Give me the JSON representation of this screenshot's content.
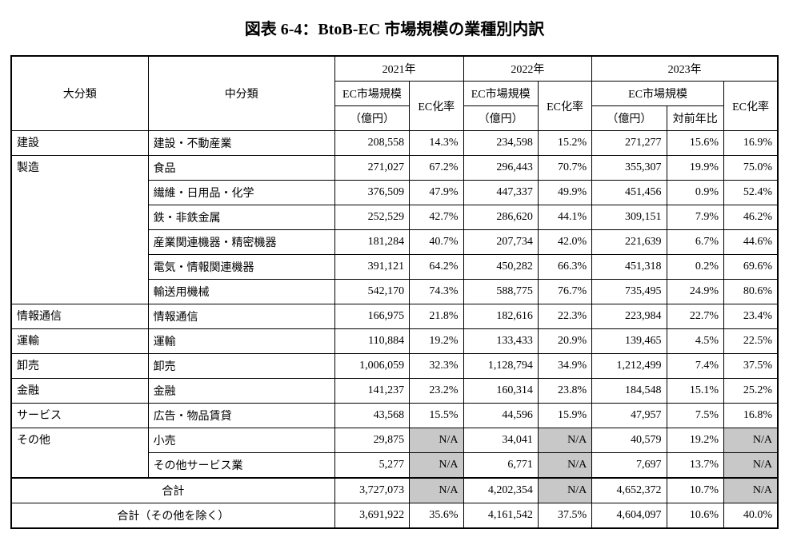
{
  "title": "図表 6-4：BtoB-EC 市場規模の業種別内訳",
  "header": {
    "major": "大分類",
    "minor": "中分類",
    "years": [
      "2021年",
      "2022年",
      "2023年"
    ],
    "ec_market": "EC市場規模",
    "ec_rate": "EC化率",
    "unit": "（億円）",
    "yoy": "対前年比"
  },
  "rows": [
    {
      "major": "建設",
      "minor": "建設・不動産業",
      "y21m": "208,558",
      "y21r": "14.3%",
      "y22m": "234,598",
      "y22r": "15.2%",
      "y23m": "271,277",
      "y23y": "15.6%",
      "y23r": "16.9%"
    },
    {
      "major": "製造",
      "minor": "食品",
      "y21m": "271,027",
      "y21r": "67.2%",
      "y22m": "296,443",
      "y22r": "70.7%",
      "y23m": "355,307",
      "y23y": "19.9%",
      "y23r": "75.0%"
    },
    {
      "minor": "繊維・日用品・化学",
      "y21m": "376,509",
      "y21r": "47.9%",
      "y22m": "447,337",
      "y22r": "49.9%",
      "y23m": "451,456",
      "y23y": "0.9%",
      "y23r": "52.4%"
    },
    {
      "minor": "鉄・非鉄金属",
      "y21m": "252,529",
      "y21r": "42.7%",
      "y22m": "286,620",
      "y22r": "44.1%",
      "y23m": "309,151",
      "y23y": "7.9%",
      "y23r": "46.2%"
    },
    {
      "minor": "産業関連機器・精密機器",
      "y21m": "181,284",
      "y21r": "40.7%",
      "y22m": "207,734",
      "y22r": "42.0%",
      "y23m": "221,639",
      "y23y": "6.7%",
      "y23r": "44.6%"
    },
    {
      "minor": "電気・情報関連機器",
      "y21m": "391,121",
      "y21r": "64.2%",
      "y22m": "450,282",
      "y22r": "66.3%",
      "y23m": "451,318",
      "y23y": "0.2%",
      "y23r": "69.6%"
    },
    {
      "minor": "輸送用機械",
      "y21m": "542,170",
      "y21r": "74.3%",
      "y22m": "588,775",
      "y22r": "76.7%",
      "y23m": "735,495",
      "y23y": "24.9%",
      "y23r": "80.6%"
    },
    {
      "major": "情報通信",
      "minor": "情報通信",
      "y21m": "166,975",
      "y21r": "21.8%",
      "y22m": "182,616",
      "y22r": "22.3%",
      "y23m": "223,984",
      "y23y": "22.7%",
      "y23r": "23.4%"
    },
    {
      "major": "運輸",
      "minor": "運輸",
      "y21m": "110,884",
      "y21r": "19.2%",
      "y22m": "133,433",
      "y22r": "20.9%",
      "y23m": "139,465",
      "y23y": "4.5%",
      "y23r": "22.5%"
    },
    {
      "major": "卸売",
      "minor": "卸売",
      "y21m": "1,006,059",
      "y21r": "32.3%",
      "y22m": "1,128,794",
      "y22r": "34.9%",
      "y23m": "1,212,499",
      "y23y": "7.4%",
      "y23r": "37.5%"
    },
    {
      "major": "金融",
      "minor": "金融",
      "y21m": "141,237",
      "y21r": "23.2%",
      "y22m": "160,314",
      "y22r": "23.8%",
      "y23m": "184,548",
      "y23y": "15.1%",
      "y23r": "25.2%"
    },
    {
      "major": "サービス",
      "minor": "広告・物品賃貸",
      "y21m": "43,568",
      "y21r": "15.5%",
      "y22m": "44,596",
      "y22r": "15.9%",
      "y23m": "47,957",
      "y23y": "7.5%",
      "y23r": "16.8%"
    },
    {
      "major": "その他",
      "minor": "小売",
      "y21m": "29,875",
      "y21r": "N/A",
      "y22m": "34,041",
      "y22r": "N/A",
      "y23m": "40,579",
      "y23y": "19.2%",
      "y23r": "N/A",
      "shade21r": true,
      "shade22r": true,
      "shade23r": true
    },
    {
      "minor": "その他サービス業",
      "y21m": "5,277",
      "y21r": "N/A",
      "y22m": "6,771",
      "y22r": "N/A",
      "y23m": "7,697",
      "y23y": "13.7%",
      "y23r": "N/A",
      "shade21r": true,
      "shade22r": true,
      "shade23r": true
    }
  ],
  "totals": {
    "t1": {
      "label": "合計",
      "y21m": "3,727,073",
      "y21r": "N/A",
      "y22m": "4,202,354",
      "y22r": "N/A",
      "y23m": "4,652,372",
      "y23y": "10.7%",
      "y23r": "N/A",
      "shade": true
    },
    "t2": {
      "label": "合計（その他を除く）",
      "y21m": "3,691,922",
      "y21r": "35.6%",
      "y22m": "4,161,542",
      "y22r": "37.5%",
      "y23m": "4,604,097",
      "y23y": "10.6%",
      "y23r": "40.0%"
    }
  },
  "col_widths": {
    "major": 165,
    "minor": 225,
    "m": 90,
    "r": 65,
    "yoy": 65
  }
}
